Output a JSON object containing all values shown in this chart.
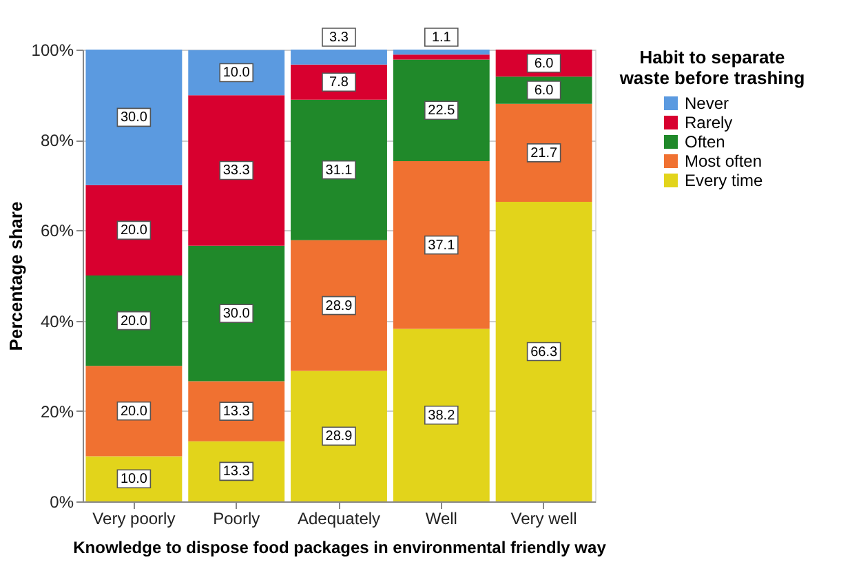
{
  "chart_data": {
    "type": "bar",
    "stacked": true,
    "xlabel": "Knowledge to dispose food packages in environmental friendly way",
    "ylabel": "Percentage share",
    "legend_title": "Habit to separate waste before trashing",
    "legend": "right",
    "grid": "y",
    "categories": [
      "Very poorly",
      "Poorly",
      "Adequately",
      "Well",
      "Very well"
    ],
    "ylim": [
      0,
      100
    ],
    "yticks": [
      {
        "value": 0,
        "label": "0%"
      },
      {
        "value": 20,
        "label": "20%"
      },
      {
        "value": 40,
        "label": "40%"
      },
      {
        "value": 60,
        "label": "60%"
      },
      {
        "value": 80,
        "label": "80%"
      },
      {
        "value": 100,
        "label": "100%"
      }
    ],
    "series": [
      {
        "name": "Every time",
        "color": "#e2d41b",
        "values": [
          10.0,
          13.3,
          28.9,
          38.2,
          66.3
        ],
        "value_labels": [
          "10.0",
          "13.3",
          "28.9",
          "38.2",
          "66.3"
        ]
      },
      {
        "name": "Most often",
        "color": "#f07131",
        "values": [
          20.0,
          13.3,
          28.9,
          37.1,
          21.7
        ],
        "value_labels": [
          "20.0",
          "13.3",
          "28.9",
          "37.1",
          "21.7"
        ]
      },
      {
        "name": "Often",
        "color": "#20892a",
        "values": [
          20.0,
          30.0,
          31.1,
          22.5,
          6.0
        ],
        "value_labels": [
          "20.0",
          "30.0",
          "31.1",
          "22.5",
          "6.0"
        ]
      },
      {
        "name": "Rarely",
        "color": "#d8002f",
        "values": [
          20.0,
          33.3,
          7.8,
          1.1,
          6.0
        ],
        "value_labels": [
          "20.0",
          "33.3",
          "7.8",
          null,
          "6.0"
        ]
      },
      {
        "name": "Never",
        "color": "#5b9ae0",
        "values": [
          30.0,
          10.0,
          3.3,
          1.1,
          0.0
        ],
        "value_labels": [
          "30.0",
          "10.0",
          "3.3",
          "1.1",
          null
        ]
      }
    ]
  }
}
